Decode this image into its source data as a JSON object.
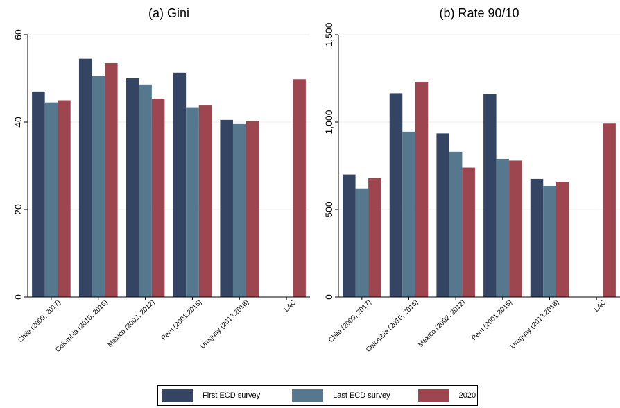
{
  "series_colors": [
    "#344563",
    "#56788e",
    "#9e4650"
  ],
  "legend": {
    "items": [
      {
        "label": "First ECD survey",
        "color": "#344563"
      },
      {
        "label": "Last ECD survey",
        "color": "#56788e"
      },
      {
        "label": "2020",
        "color": "#9e4650"
      }
    ]
  },
  "chart_data": [
    {
      "type": "bar",
      "title": "(a) Gini",
      "categories": [
        "Chile (2009, 2017)",
        "Colombia (2010, 2016)",
        "Mexico (2002, 2012)",
        "Peru (2001,2015)",
        "Uruguay (2013,2018)",
        "LAC"
      ],
      "series": [
        {
          "name": "First ECD survey",
          "values": [
            47.0,
            54.5,
            50.0,
            51.3,
            40.5,
            null
          ]
        },
        {
          "name": "Last ECD survey",
          "values": [
            44.5,
            50.5,
            48.6,
            43.4,
            39.7,
            null
          ]
        },
        {
          "name": "2020",
          "values": [
            45.0,
            53.5,
            45.4,
            43.8,
            40.2,
            49.8
          ]
        }
      ],
      "ylim": [
        0,
        60
      ],
      "yticks": [
        0,
        20,
        40,
        60
      ],
      "ytick_labels": [
        "0",
        "20",
        "40",
        "60"
      ],
      "grid": true
    },
    {
      "type": "bar",
      "title": "(b) Rate 90/10",
      "categories": [
        "Chile (2009, 2017)",
        "Colombia (2010, 2016)",
        "Mexico (2002, 2012)",
        "Peru (2001,2015)",
        "Uruguay (2013,2018)",
        "LAC"
      ],
      "series": [
        {
          "name": "First ECD survey",
          "values": [
            700,
            1165,
            935,
            1160,
            675,
            null
          ]
        },
        {
          "name": "Last ECD survey",
          "values": [
            620,
            945,
            830,
            790,
            635,
            null
          ]
        },
        {
          "name": "2020",
          "values": [
            680,
            1230,
            740,
            780,
            658,
            995
          ]
        }
      ],
      "ylim": [
        0,
        1500
      ],
      "yticks": [
        0,
        500,
        1000,
        1500
      ],
      "ytick_labels": [
        "0",
        "500",
        "1,000",
        "1,500"
      ],
      "grid": true
    }
  ]
}
